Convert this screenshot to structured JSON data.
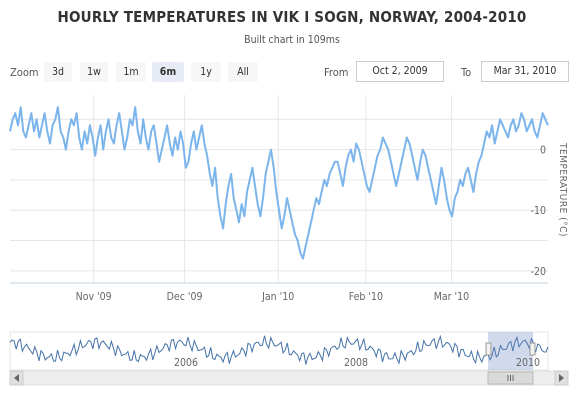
{
  "chart": {
    "title": "HOURLY TEMPERATURES IN VIK I SOGN, NORWAY, 2004-2010",
    "subtitle": "Built chart in 109ms"
  },
  "range_selector": {
    "zoom_label": "Zoom",
    "buttons": [
      {
        "label": "3d",
        "active": false
      },
      {
        "label": "1w",
        "active": false
      },
      {
        "label": "1m",
        "active": false
      },
      {
        "label": "6m",
        "active": true
      },
      {
        "label": "1y",
        "active": false
      },
      {
        "label": "All",
        "active": false
      }
    ],
    "from_label": "From",
    "from_value": "Oct 2, 2009",
    "to_label": "To",
    "to_value": "Mar 31, 2010"
  },
  "navigator": {
    "year_labels": [
      "2006",
      "2008",
      "2010"
    ]
  },
  "chart_data": {
    "type": "line",
    "ylabel": "TEMPERATURE (°C)",
    "ylim": [
      -22,
      9
    ],
    "y_ticks": [
      "0",
      "-10",
      "-20"
    ],
    "x_tick_labels": [
      "Nov '09",
      "Dec '09",
      "Jan '10",
      "Feb '10",
      "Mar '10"
    ],
    "color": "#7cb5ec",
    "series": [
      {
        "values": [
          3,
          5,
          6,
          4,
          7,
          3,
          2,
          4,
          6,
          3,
          5,
          2,
          4,
          6,
          3,
          1,
          4,
          5,
          7,
          3,
          2,
          0,
          3,
          5,
          4,
          6,
          2,
          0,
          3,
          1,
          4,
          2,
          -1,
          2,
          4,
          0,
          3,
          5,
          2,
          1,
          4,
          6,
          3,
          0,
          2,
          5,
          4,
          7,
          3,
          1,
          5,
          2,
          0,
          3,
          4,
          1,
          -2,
          0,
          2,
          4,
          1,
          -1,
          2,
          0,
          3,
          1,
          -3,
          -2,
          1,
          3,
          0,
          2,
          4,
          1,
          -1,
          -4,
          -6,
          -3,
          -8,
          -11,
          -13,
          -9,
          -6,
          -4,
          -8,
          -10,
          -12,
          -9,
          -11,
          -7,
          -5,
          -3,
          -6,
          -9,
          -11,
          -8,
          -4,
          -2,
          0,
          -3,
          -7,
          -10,
          -13,
          -11,
          -8,
          -10,
          -12,
          -14,
          -15,
          -17,
          -18,
          -16,
          -14,
          -12,
          -10,
          -8,
          -9,
          -7,
          -5,
          -6,
          -4,
          -3,
          -2,
          -2,
          -4,
          -6,
          -3,
          -1,
          0,
          -2,
          1,
          0,
          -2,
          -4,
          -6,
          -7,
          -5,
          -3,
          -1,
          0,
          2,
          1,
          0,
          -2,
          -4,
          -6,
          -4,
          -2,
          0,
          2,
          1,
          -1,
          -3,
          -5,
          -2,
          0,
          -1,
          -3,
          -5,
          -7,
          -9,
          -6,
          -3,
          -5,
          -8,
          -10,
          -11,
          -8,
          -7,
          -5,
          -6,
          -4,
          -3,
          -5,
          -7,
          -4,
          -2,
          -1,
          1,
          3,
          2,
          4,
          1,
          3,
          5,
          4,
          3,
          2,
          4,
          5,
          3,
          4,
          6,
          5,
          3,
          4,
          5,
          3,
          2,
          4,
          6,
          5,
          4
        ]
      }
    ]
  }
}
